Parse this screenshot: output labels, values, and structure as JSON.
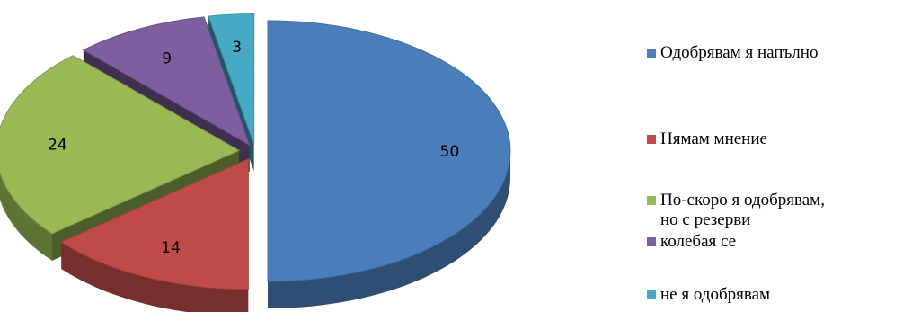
{
  "chart_data": {
    "type": "pie",
    "style": "3d-exploded",
    "slices": [
      {
        "label": "Одобрявам я напълно",
        "value": 50,
        "color": "#4a7ebb"
      },
      {
        "label": "Нямам мнение",
        "value": 14,
        "color": "#be4b48"
      },
      {
        "label": "По-скоро я одобрявам,\nно с резерви",
        "value": 24,
        "color": "#98b954"
      },
      {
        "label": "колебая се",
        "value": 9,
        "color": "#7d5fa0"
      },
      {
        "label": "не я одобрявам",
        "value": 3,
        "color": "#46aac5"
      }
    ],
    "legend_position": "right"
  }
}
